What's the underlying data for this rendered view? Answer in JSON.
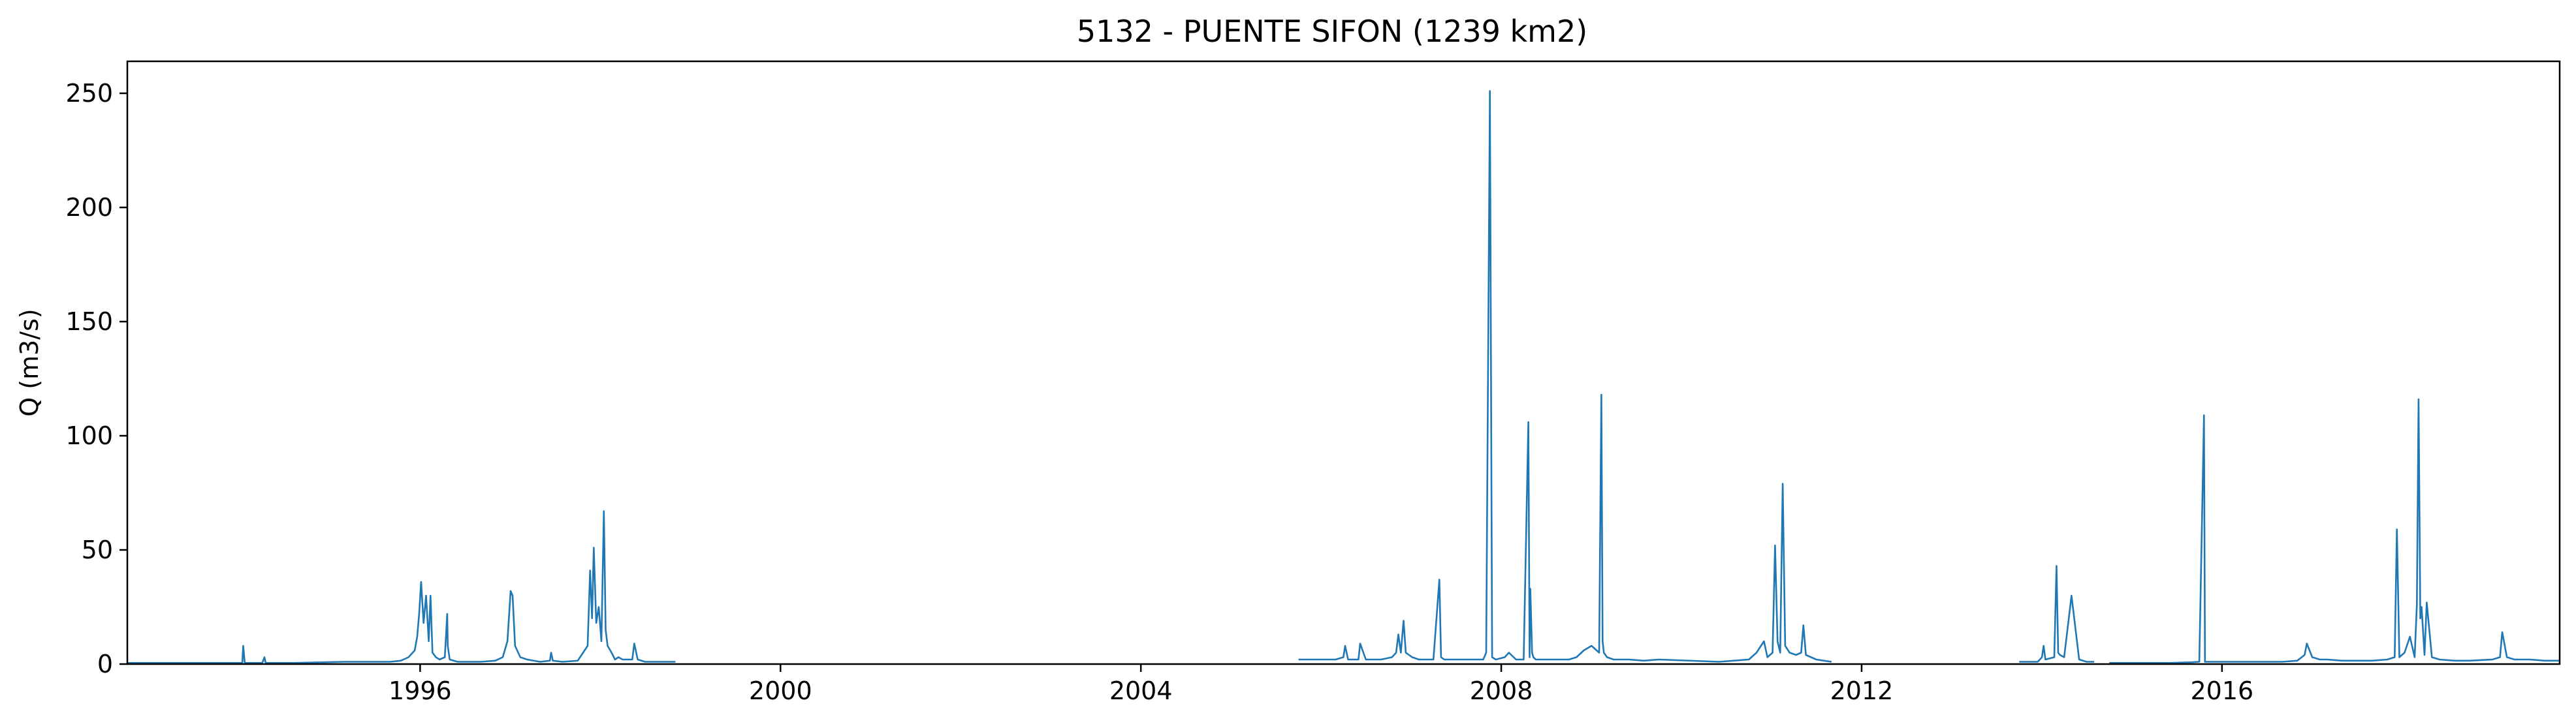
{
  "chart_data": {
    "type": "line",
    "title": "5132 - PUENTE SIFON (1239 km2)",
    "xlabel": "",
    "ylabel": "Q (m3/s)",
    "xlim": [
      "1992-10-01",
      "2019-10-01"
    ],
    "ylim": [
      0,
      264
    ],
    "grid": false,
    "legend": "none",
    "x_ticks": [
      {
        "value": "1996-01-01",
        "label": "1996"
      },
      {
        "value": "2000-01-01",
        "label": "2000"
      },
      {
        "value": "2004-01-01",
        "label": "2004"
      },
      {
        "value": "2008-01-01",
        "label": "2008"
      },
      {
        "value": "2012-01-01",
        "label": "2012"
      },
      {
        "value": "2016-01-01",
        "label": "2016"
      }
    ],
    "y_ticks": [
      {
        "value": 0,
        "label": "0"
      },
      {
        "value": 50,
        "label": "50"
      },
      {
        "value": 100,
        "label": "100"
      },
      {
        "value": 150,
        "label": "150"
      },
      {
        "value": 200,
        "label": "200"
      },
      {
        "value": 250,
        "label": "250"
      }
    ],
    "series": [
      {
        "color": "#1f77b4",
        "segments": [
          {
            "x": [
              "1992-10-01",
              "1993-06-01",
              "1993-12-01",
              "1994-01-10",
              "1994-01-14",
              "1994-01-20",
              "1994-04-01",
              "1994-04-10",
              "1994-04-15",
              "1994-08-01",
              "1995-03-01",
              "1995-06-01",
              "1995-09-01",
              "1995-10-15",
              "1995-11-15",
              "1995-12-10",
              "1995-12-20",
              "1995-12-28",
              "1996-01-05",
              "1996-01-15",
              "1996-01-25",
              "1996-02-05",
              "1996-02-12",
              "1996-02-20",
              "1996-03-05",
              "1996-03-20",
              "1996-04-10",
              "1996-04-20",
              "1996-04-22",
              "1996-04-30",
              "1996-06-01",
              "1996-09-01",
              "1996-11-01",
              "1996-12-01",
              "1996-12-20",
              "1997-01-02",
              "1997-01-10",
              "1997-01-20",
              "1997-02-10",
              "1997-03-10",
              "1997-05-01",
              "1997-06-10",
              "1997-06-15",
              "1997-06-22",
              "1997-08-01",
              "1997-10-01",
              "1997-11-10",
              "1997-11-20",
              "1997-11-28",
              "1997-12-05",
              "1997-12-15",
              "1997-12-25",
              "1998-01-05",
              "1998-01-15",
              "1998-01-22",
              "1998-01-30",
              "1998-02-10",
              "1998-02-20",
              "1998-03-01",
              "1998-03-15",
              "1998-04-01",
              "1998-04-20",
              "1998-05-10",
              "1998-05-18",
              "1998-06-01",
              "1998-07-01",
              "1998-09-01",
              "1998-10-15",
              "1998-11-01"
            ],
            "y": [
              0.5,
              0.5,
              0.5,
              0.5,
              8,
              0.5,
              0.5,
              3,
              0.5,
              0.5,
              1,
              1,
              1,
              1.5,
              3,
              6,
              12,
              22,
              36,
              18,
              30,
              10,
              30,
              5,
              3,
              2,
              3,
              22,
              8,
              2,
              1,
              1,
              1.5,
              3,
              10,
              32,
              30,
              8,
              3,
              2,
              1,
              1.5,
              5,
              1.5,
              1,
              1.5,
              8,
              41,
              20,
              51,
              18,
              25,
              10,
              67,
              15,
              8,
              6,
              4,
              2,
              3,
              2,
              2,
              2,
              9,
              2,
              1,
              1,
              1,
              1
            ]
          },
          {
            "x": [
              "2005-10-01",
              "2006-01-01",
              "2006-03-01",
              "2006-04-01",
              "2006-04-08",
              "2006-04-20",
              "2006-06-01",
              "2006-06-08",
              "2006-07-01",
              "2006-09-01",
              "2006-10-15",
              "2006-11-01",
              "2006-11-10",
              "2006-11-20",
              "2006-12-01",
              "2006-12-10",
              "2007-01-05",
              "2007-02-01",
              "2007-03-01",
              "2007-04-01",
              "2007-04-25",
              "2007-05-02",
              "2007-05-15",
              "2007-07-01",
              "2007-09-01",
              "2007-10-20",
              "2007-11-01",
              "2007-11-16",
              "2007-11-25",
              "2007-12-10",
              "2008-01-15",
              "2008-02-01",
              "2008-03-01",
              "2008-04-01",
              "2008-04-20",
              "2008-04-25",
              "2008-04-28",
              "2008-05-05",
              "2008-05-10",
              "2008-05-20",
              "2008-06-15",
              "2008-08-01",
              "2008-10-01",
              "2008-11-01",
              "2008-12-01",
              "2009-01-01",
              "2009-02-01",
              "2009-02-10",
              "2009-02-15",
              "2009-02-20",
              "2009-03-05",
              "2009-04-01",
              "2009-06-01",
              "2009-08-01",
              "2009-10-01",
              "2010-06-01",
              "2010-10-01",
              "2010-11-01",
              "2010-12-01",
              "2010-12-15",
              "2011-01-05",
              "2011-01-15",
              "2011-01-25",
              "2011-02-05",
              "2011-02-15",
              "2011-02-25",
              "2011-03-15",
              "2011-04-10",
              "2011-05-01",
              "2011-05-10",
              "2011-05-20",
              "2011-06-10",
              "2011-07-01",
              "2011-08-01",
              "2011-09-01"
            ],
            "y": [
              2,
              2,
              2,
              3,
              8,
              2,
              2,
              9,
              2,
              2,
              3,
              5,
              13,
              5,
              19,
              5,
              3,
              2,
              2,
              2,
              37,
              3,
              2,
              2,
              2,
              2,
              5,
              251,
              3,
              2,
              3,
              5,
              2,
              2,
              106,
              3,
              33,
              5,
              3,
              2,
              2,
              2,
              2,
              3,
              6,
              8,
              5,
              118,
              10,
              5,
              3,
              2,
              2,
              1.5,
              2,
              1,
              2,
              5,
              10,
              3,
              5,
              52,
              10,
              5,
              79,
              8,
              5,
              4,
              5,
              17,
              4,
              3,
              2,
              1.5,
              1
            ]
          },
          {
            "x": [
              "2013-10-01",
              "2013-12-15",
              "2014-01-01",
              "2014-01-08",
              "2014-01-15",
              "2014-02-20",
              "2014-03-01",
              "2014-03-08",
              "2014-03-15",
              "2014-04-01",
              "2014-05-01",
              "2014-06-01",
              "2014-07-01",
              "2014-08-01"
            ],
            "y": [
              1,
              1,
              3,
              8,
              2,
              3,
              43,
              5,
              4,
              3,
              30,
              2,
              1,
              1
            ]
          },
          {
            "x": [
              "2014-10-01",
              "2015-06-01",
              "2015-09-01",
              "2015-10-01",
              "2015-10-20",
              "2015-10-24",
              "2015-11-01",
              "2015-12-01",
              "2016-03-01",
              "2016-06-01",
              "2016-09-01",
              "2016-11-01",
              "2016-12-01",
              "2016-12-10",
              "2017-01-01",
              "2017-02-01",
              "2017-03-01",
              "2017-05-01",
              "2017-07-01",
              "2017-09-01",
              "2017-11-01",
              "2017-12-01",
              "2017-12-10",
              "2017-12-20",
              "2018-01-10",
              "2018-02-01",
              "2018-02-20",
              "2018-03-01",
              "2018-03-08",
              "2018-03-15",
              "2018-03-20",
              "2018-04-01",
              "2018-04-10",
              "2018-05-01",
              "2018-06-01",
              "2018-08-01",
              "2018-10-01",
              "2019-01-01",
              "2019-02-01",
              "2019-02-10",
              "2019-03-01",
              "2019-04-01",
              "2019-06-01",
              "2019-08-01",
              "2019-10-01"
            ],
            "y": [
              0.5,
              0.5,
              0.8,
              1,
              109,
              1,
              1,
              1,
              1,
              1,
              1,
              1.5,
              4,
              9,
              3,
              2,
              2,
              1.5,
              1.5,
              1.5,
              2,
              3,
              59,
              3,
              5,
              12,
              3,
              26,
              116,
              20,
              25,
              4,
              27,
              3,
              2,
              1.5,
              1.5,
              2,
              3,
              14,
              3,
              2,
              2,
              1.5,
              1.5
            ]
          }
        ]
      }
    ]
  }
}
